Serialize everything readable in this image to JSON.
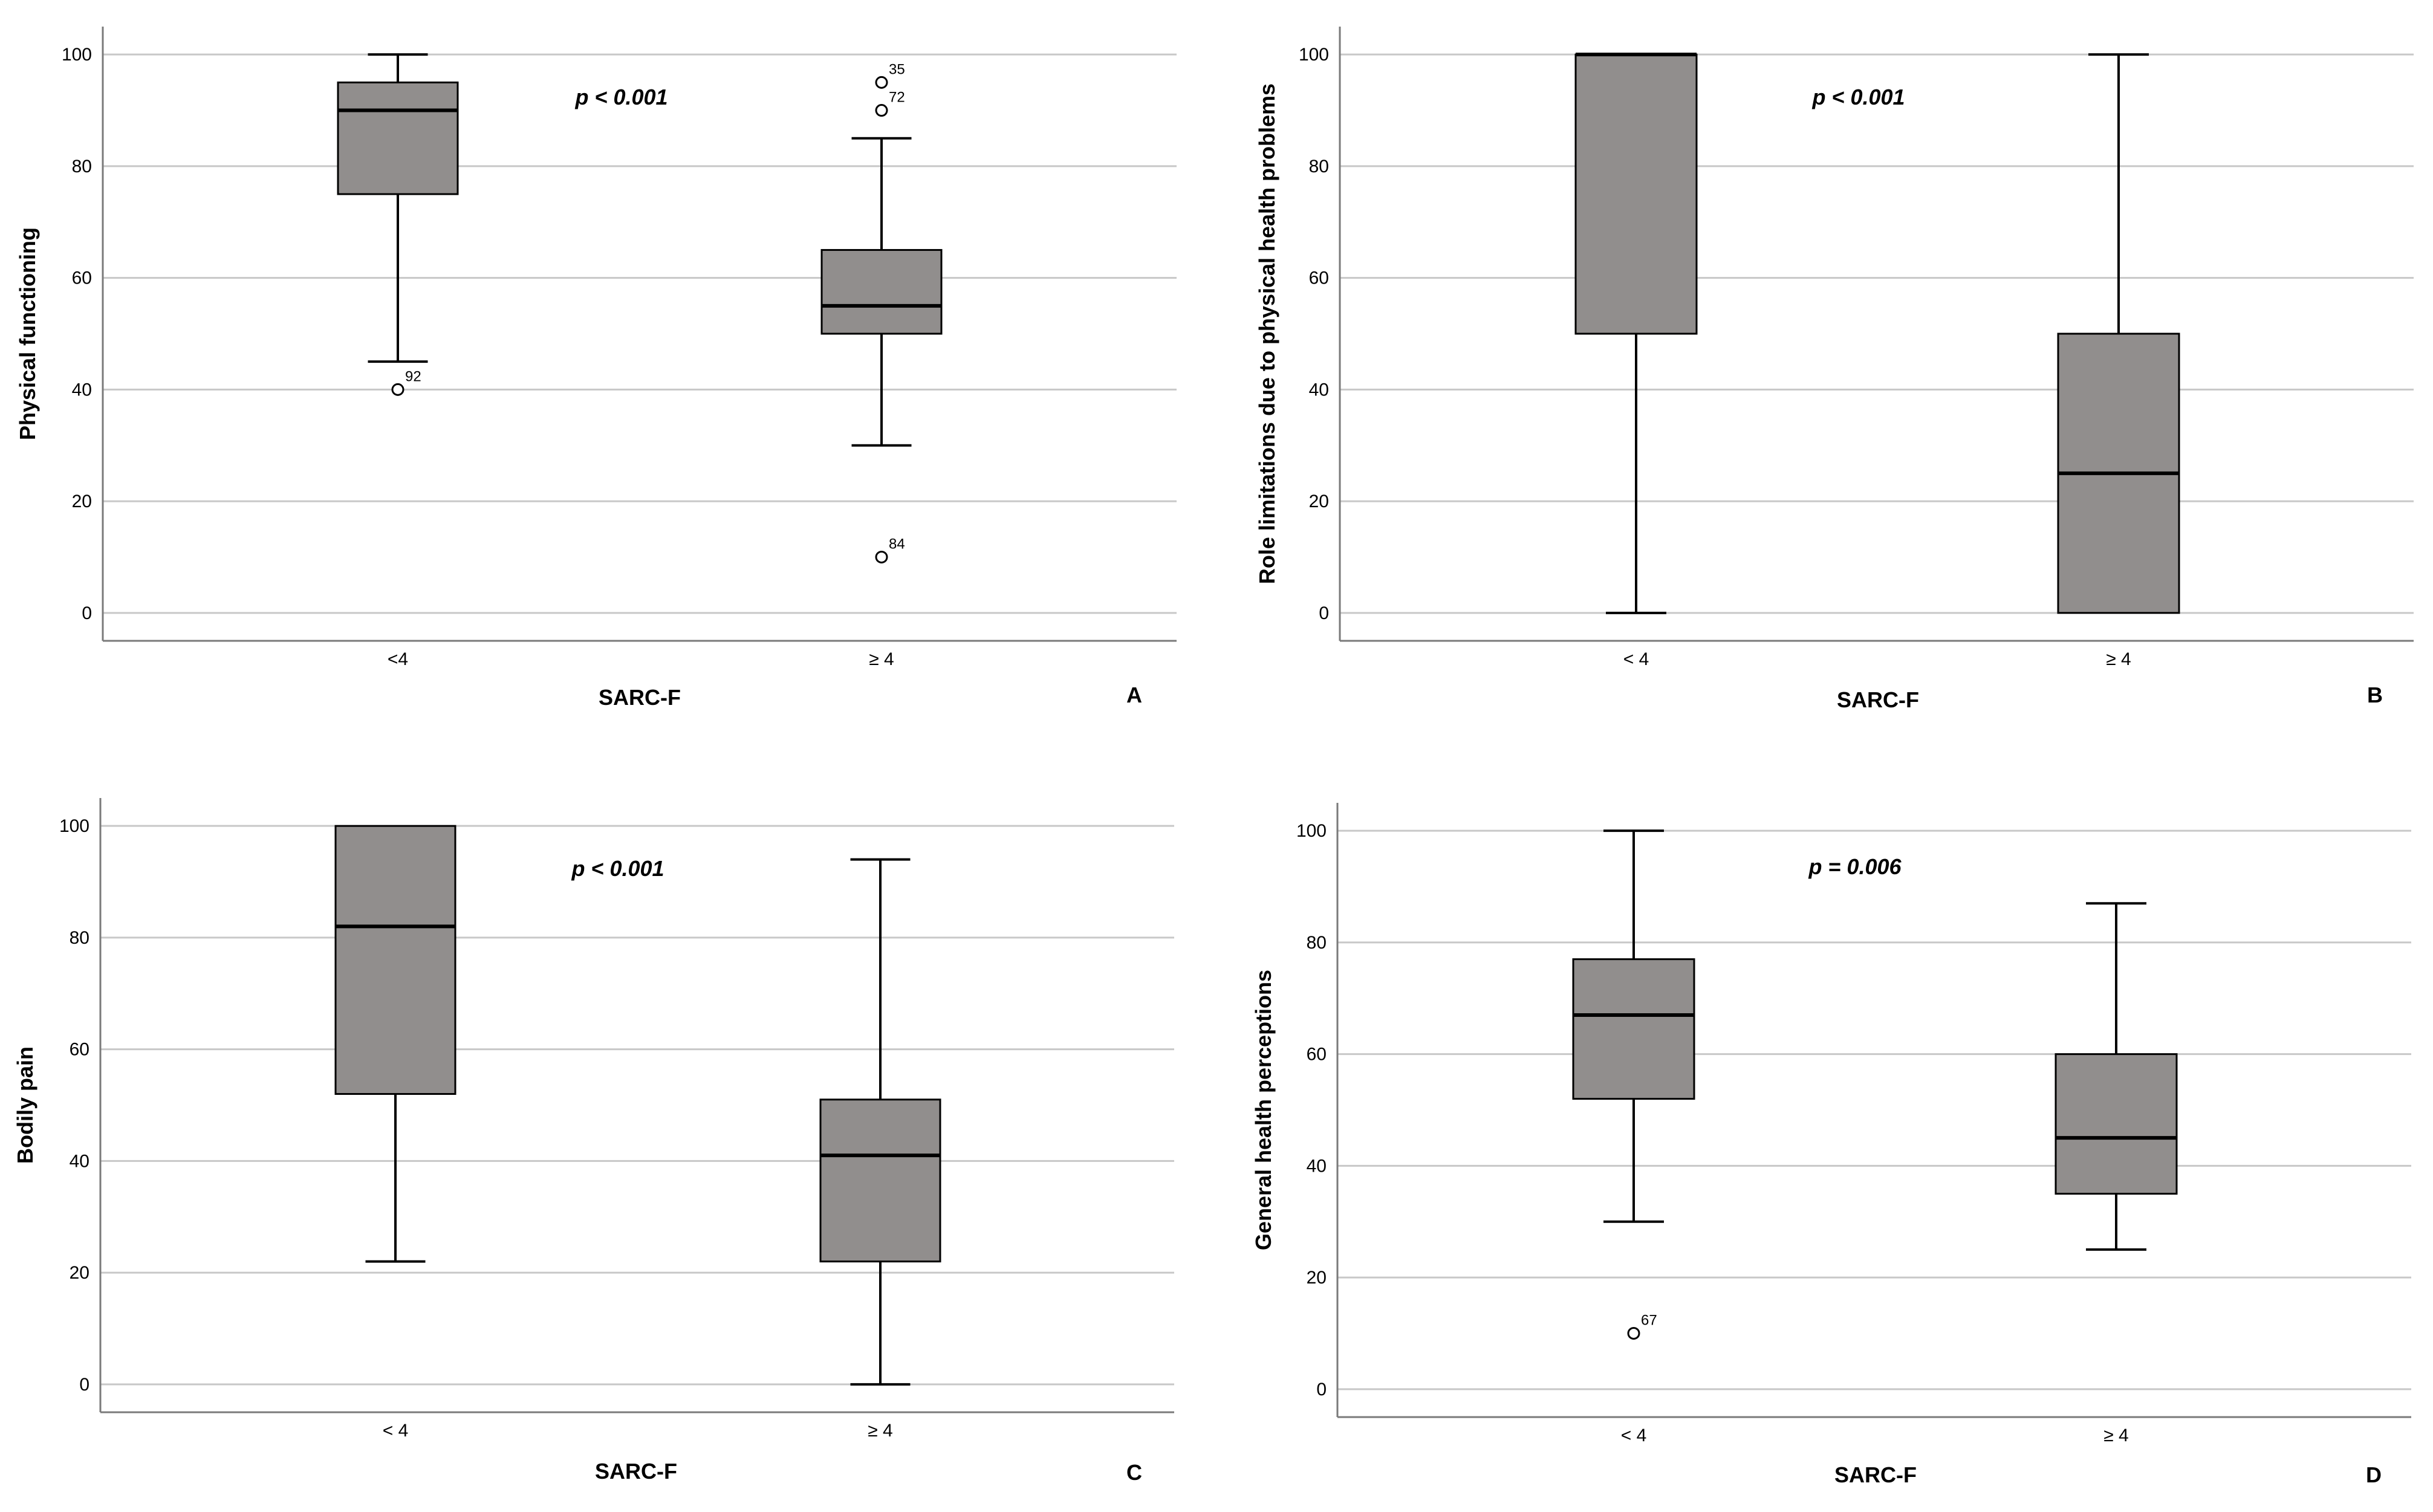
{
  "figure": {
    "colors": {
      "box": "#918e8d",
      "grid": "#c8c8c8",
      "axis": "#7a7a7a",
      "ink": "#000000"
    }
  },
  "chart_data": [
    {
      "type": "box",
      "panel": "A",
      "xlabel": "SARC-F",
      "ylabel": "Physical functioning",
      "ylim": [
        -5,
        105
      ],
      "yticks": [
        0,
        20,
        40,
        60,
        80,
        100
      ],
      "annotation": "p < 0.001",
      "categories": [
        "<4",
        "≥ 4"
      ],
      "boxes": [
        {
          "category": "<4",
          "whisker_low": 45,
          "q1": 75,
          "median": 90,
          "q3": 95,
          "whisker_high": 100,
          "outliers": [
            {
              "value": 40,
              "label": "92"
            }
          ]
        },
        {
          "category": "≥ 4",
          "whisker_low": 30,
          "q1": 50,
          "median": 55,
          "q3": 65,
          "whisker_high": 85,
          "outliers": [
            {
              "value": 95,
              "label": "35"
            },
            {
              "value": 90,
              "label": "72"
            },
            {
              "value": 10,
              "label": "84"
            }
          ]
        }
      ]
    },
    {
      "type": "box",
      "panel": "B",
      "xlabel": "SARC-F",
      "ylabel": "Role limitations due to physical health problems",
      "ylim": [
        -5,
        105
      ],
      "yticks": [
        0,
        20,
        40,
        60,
        80,
        100
      ],
      "annotation": "p < 0.001",
      "categories": [
        "< 4",
        "≥ 4"
      ],
      "boxes": [
        {
          "category": "< 4",
          "whisker_low": 0,
          "q1": 50,
          "median": 100,
          "q3": 100,
          "whisker_high": 100,
          "outliers": []
        },
        {
          "category": "≥ 4",
          "whisker_low": 0,
          "q1": 0,
          "median": 25,
          "q3": 50,
          "whisker_high": 100,
          "outliers": []
        }
      ]
    },
    {
      "type": "box",
      "panel": "C",
      "xlabel": "SARC-F",
      "ylabel": "Bodily pain",
      "ylim": [
        -5,
        105
      ],
      "yticks": [
        0,
        20,
        40,
        60,
        80,
        100
      ],
      "annotation": "p < 0.001",
      "categories": [
        "< 4",
        "≥ 4"
      ],
      "boxes": [
        {
          "category": "< 4",
          "whisker_low": 22,
          "q1": 52,
          "median": 82,
          "q3": 100,
          "whisker_high": 100,
          "outliers": []
        },
        {
          "category": "≥ 4",
          "whisker_low": 0,
          "q1": 22,
          "median": 41,
          "q3": 51,
          "whisker_high": 94,
          "outliers": []
        }
      ]
    },
    {
      "type": "box",
      "panel": "D",
      "xlabel": "SARC-F",
      "ylabel": "General health perceptions",
      "ylim": [
        -5,
        105
      ],
      "yticks": [
        0,
        20,
        40,
        60,
        80,
        100
      ],
      "annotation": "p = 0.006",
      "categories": [
        "< 4",
        "≥ 4"
      ],
      "boxes": [
        {
          "category": "< 4",
          "whisker_low": 30,
          "q1": 52,
          "median": 67,
          "q3": 77,
          "whisker_high": 100,
          "outliers": [
            {
              "value": 10,
              "label": "67"
            }
          ]
        },
        {
          "category": "≥ 4",
          "whisker_low": 25,
          "q1": 35,
          "median": 45,
          "q3": 60,
          "whisker_high": 87,
          "outliers": []
        }
      ]
    }
  ]
}
